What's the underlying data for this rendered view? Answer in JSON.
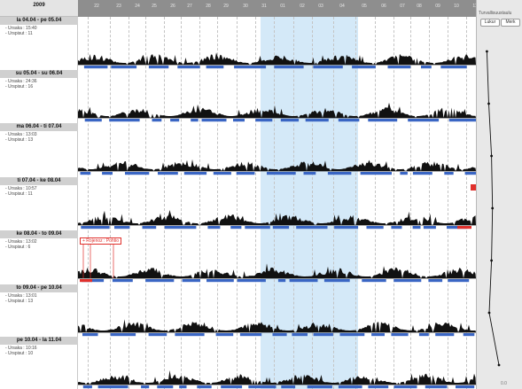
{
  "year_label": "2009",
  "days": [
    "22",
    "23",
    "24",
    "25",
    "26",
    "27",
    "28",
    "29",
    "30",
    "31",
    "01",
    "02",
    "03",
    "04",
    "05",
    "06",
    "07",
    "08",
    "09",
    "10",
    "11"
  ],
  "weeks": [
    {
      "title": "la 04.04 - pe 05.04",
      "stat1": "- Ursaka : 15:40",
      "stat2": "- Urspisut : 11"
    },
    {
      "title": "su 05.04 - su 06.04",
      "stat1": "- Ursaka : 24:36",
      "stat2": "- Urspisut : 16"
    },
    {
      "title": "ma 06.04 - ti 07.04",
      "stat1": "- Ursaka : 13:03",
      "stat2": "- Urspisut : 13"
    },
    {
      "title": "ti 07.04 - ke 08.04",
      "stat1": "- Ursaka : 10:57",
      "stat2": "- Urspisut : 11"
    },
    {
      "title": "ke 08.04 - to 09.04",
      "stat1": "- Ursaka : 13:02",
      "stat2": "- Urspisut : 6"
    },
    {
      "title": "to 09.04 - pe 10.04",
      "stat1": "- Ursaka : 13:01",
      "stat2": "- Urspisut : 13"
    },
    {
      "title": "pe 10.04 - la 11.04",
      "stat1": "- Ursaka : 10:16",
      "stat2": "- Urspisut : 10"
    }
  ],
  "annotation": "+ Rojenoz : Pohtio",
  "right_panel": {
    "title": "Turvallisuustaulu",
    "btn_left": "Lukur",
    "btn_right": "Merk",
    "bottom_value": "0.0",
    "trend": [
      0.22,
      0.26,
      0.32,
      0.34,
      0.32,
      0.27,
      0.48
    ]
  },
  "colors": {
    "activity": "#111111",
    "segment": "#3a66c4",
    "alert": "#e0302c",
    "highlight": "#d4e9f8"
  }
}
